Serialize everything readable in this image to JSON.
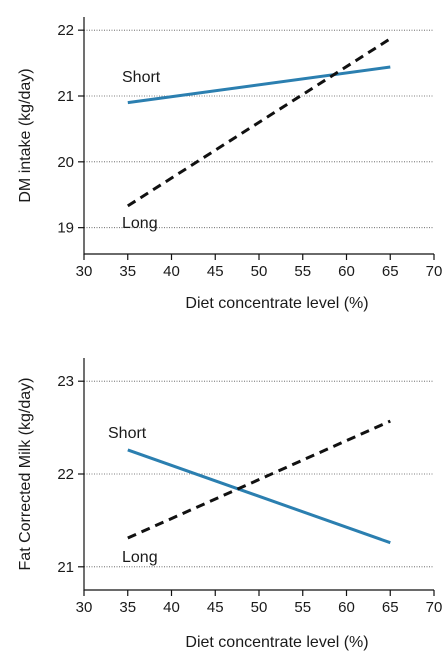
{
  "chart_data": [
    {
      "type": "line",
      "title": "",
      "xlabel": "Diet concentrate level (%)",
      "ylabel": "DM intake (kg/day)",
      "xlim": [
        30,
        70
      ],
      "ylim": [
        18.6,
        22.2
      ],
      "xticks": [
        30,
        35,
        40,
        45,
        50,
        55,
        60,
        65,
        70
      ],
      "yticks": [
        19,
        20,
        21,
        22
      ],
      "grid": "horizontal dotted",
      "series": [
        {
          "name": "Short",
          "x": [
            35,
            65
          ],
          "y": [
            20.9,
            21.44
          ],
          "color": "#2b7fb0",
          "style": "solid"
        },
        {
          "name": "Long",
          "x": [
            35,
            65
          ],
          "y": [
            19.33,
            21.87
          ],
          "color": "#111111",
          "style": "dashed"
        }
      ]
    },
    {
      "type": "line",
      "title": "",
      "xlabel": "Diet concentrate level (%)",
      "ylabel": "Fat Corrected Milk (kg/day)",
      "xlim": [
        30,
        70
      ],
      "ylim": [
        20.75,
        23.25
      ],
      "xticks": [
        30,
        35,
        40,
        45,
        50,
        55,
        60,
        65,
        70
      ],
      "yticks": [
        21,
        22,
        23
      ],
      "grid": "horizontal dotted",
      "series": [
        {
          "name": "Short",
          "x": [
            35,
            65
          ],
          "y": [
            22.26,
            21.26
          ],
          "color": "#2b7fb0",
          "style": "solid"
        },
        {
          "name": "Long",
          "x": [
            35,
            65
          ],
          "y": [
            21.31,
            22.57
          ],
          "color": "#111111",
          "style": "dashed"
        }
      ]
    }
  ]
}
